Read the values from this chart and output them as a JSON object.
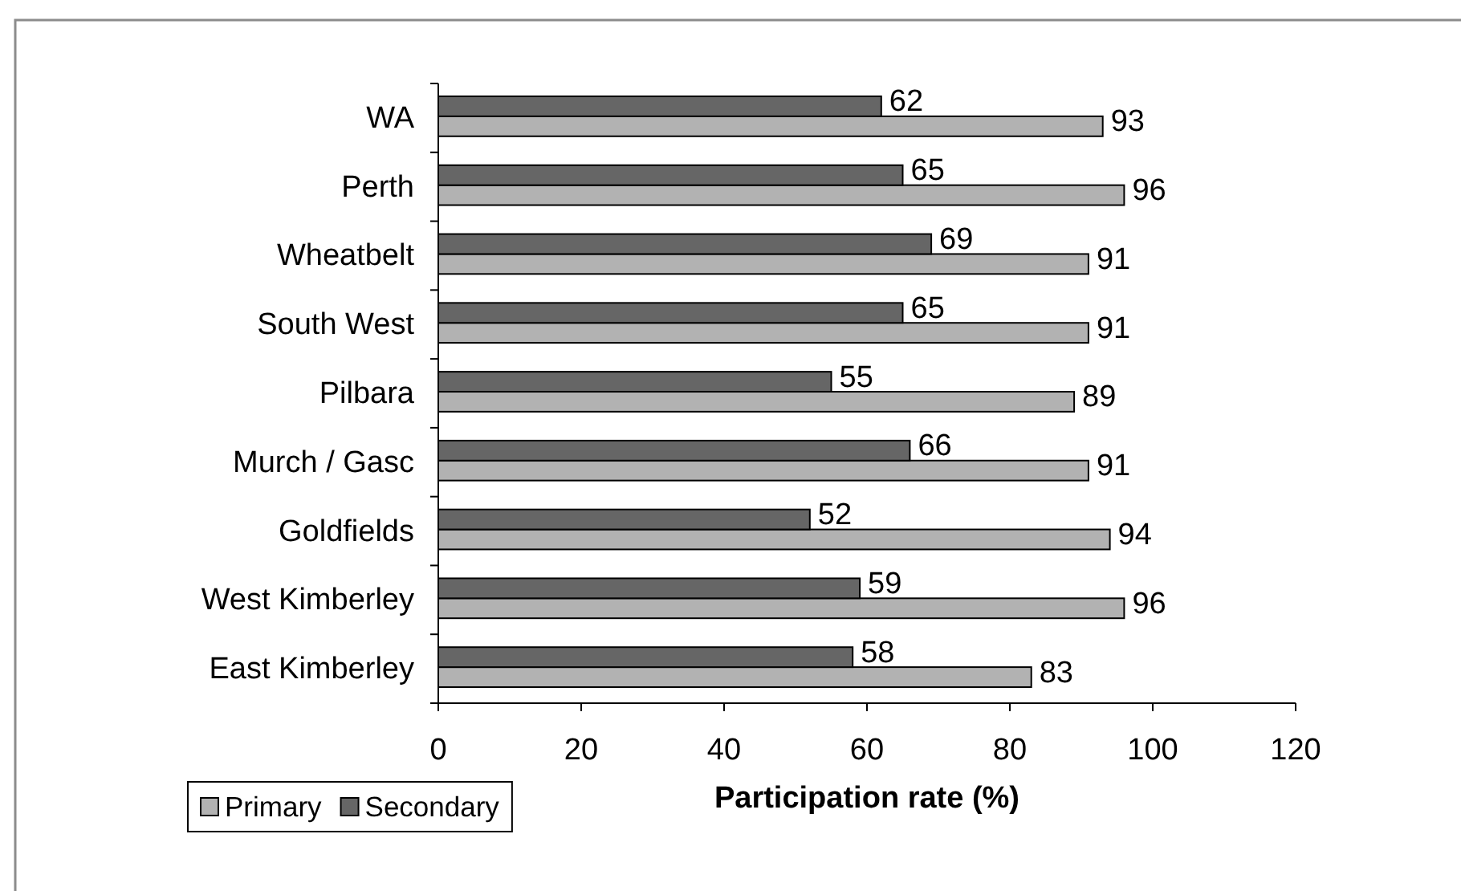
{
  "chart_data": {
    "type": "bar",
    "orientation": "horizontal",
    "categories": [
      "WA",
      "Perth",
      "Wheatbelt",
      "South West",
      "Pilbara",
      "Murch / Gasc",
      "Goldfields",
      "West Kimberley",
      "East Kimberley"
    ],
    "series": [
      {
        "name": "Primary",
        "color": "#b2b2b2",
        "values": [
          93,
          96,
          91,
          91,
          89,
          91,
          94,
          96,
          83
        ]
      },
      {
        "name": "Secondary",
        "color": "#666666",
        "values": [
          62,
          65,
          69,
          65,
          55,
          66,
          52,
          59,
          58
        ]
      }
    ],
    "xlabel": "Participation rate (%)",
    "xlim": [
      0,
      120
    ],
    "xticks": [
      0,
      20,
      40,
      60,
      80,
      100,
      120
    ],
    "data_labels": true,
    "legend": "bottom left"
  }
}
